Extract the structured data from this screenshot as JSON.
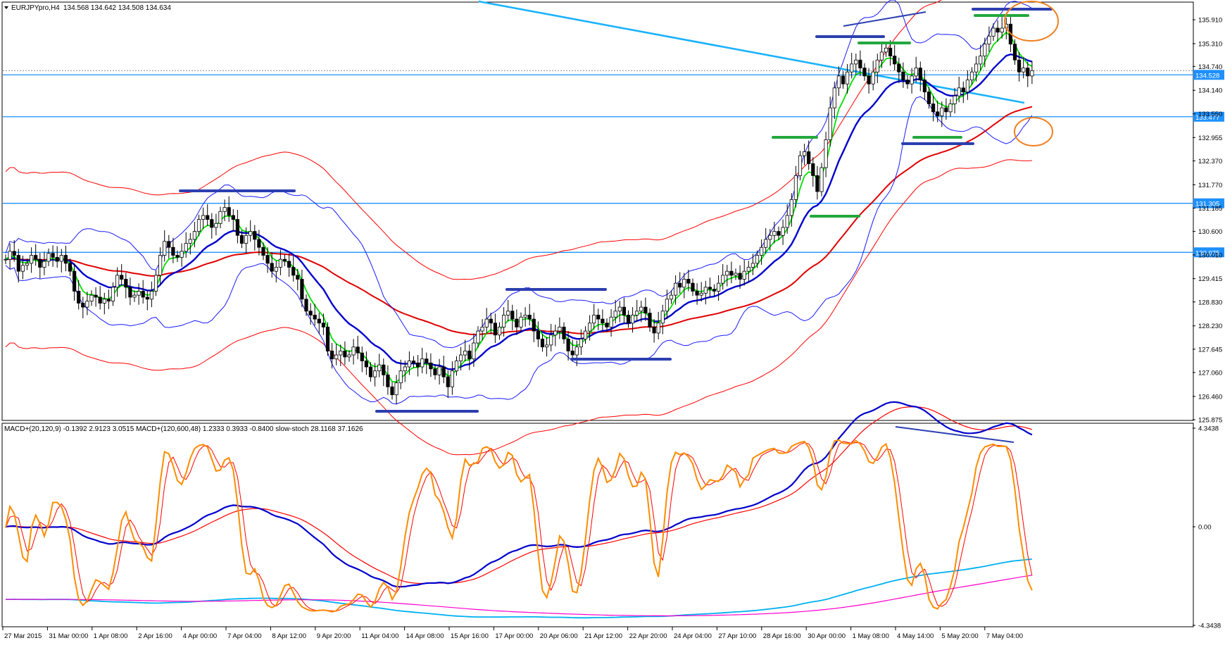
{
  "chart_data": [
    {
      "type": "candlestick",
      "symbol_label": "EURJPYpro,H4",
      "ohlc_label": "134.568 134.642 134.508 134.634",
      "y_ticks": [
        "135.910",
        "135.310",
        "134.740",
        "134.140",
        "133.550",
        "132.955",
        "132.370",
        "131.770",
        "131.185",
        "130.600",
        "130.010",
        "129.415",
        "128.830",
        "128.230",
        "127.645",
        "127.060",
        "126.460",
        "125.875"
      ],
      "y_range": [
        125.875,
        136.3
      ],
      "price_levels": [
        {
          "value": 134.528,
          "label": "134.528"
        },
        {
          "value": 133.477,
          "label": "133.477"
        },
        {
          "value": 131.305,
          "label": "131.305"
        },
        {
          "value": 130.075,
          "label": "130.075"
        }
      ],
      "current_price": 134.634,
      "series": [
        {
          "name": "close",
          "values": [
            129.9,
            130.1,
            130.0,
            129.6,
            129.75,
            129.8,
            130.0,
            129.9,
            129.7,
            129.85,
            130.05,
            129.95,
            129.85,
            130.0,
            129.8,
            129.6,
            129.1,
            128.8,
            128.7,
            128.85,
            129.0,
            128.95,
            128.8,
            128.9,
            128.85,
            129.2,
            129.5,
            129.4,
            129.2,
            128.95,
            129.0,
            129.1,
            128.95,
            128.9,
            129.1,
            129.5,
            130.0,
            130.35,
            130.2,
            130.0,
            129.95,
            130.1,
            130.3,
            130.4,
            130.6,
            130.9,
            131.0,
            130.9,
            130.7,
            130.8,
            131.1,
            131.2,
            131.0,
            130.9,
            130.5,
            130.3,
            130.5,
            130.6,
            130.4,
            130.2,
            130.0,
            129.8,
            129.6,
            129.7,
            129.9,
            129.85,
            129.7,
            129.5,
            129.4,
            128.9,
            128.6,
            128.5,
            128.4,
            128.3,
            128.2,
            127.6,
            127.4,
            127.5,
            127.6,
            127.45,
            127.5,
            127.7,
            127.55,
            127.35,
            127.2,
            126.95,
            127.1,
            127.25,
            127.0,
            126.7,
            126.5,
            126.8,
            127.1,
            127.2,
            127.35,
            127.3,
            127.2,
            127.4,
            127.3,
            127.15,
            127.0,
            127.2,
            126.95,
            126.7,
            127.1,
            127.35,
            127.5,
            127.6,
            127.4,
            127.8,
            128.1,
            128.2,
            128.4,
            128.3,
            128.0,
            128.2,
            128.5,
            128.6,
            128.4,
            128.2,
            128.45,
            128.5,
            128.4,
            128.1,
            127.9,
            127.7,
            127.75,
            128.0,
            128.1,
            128.2,
            127.9,
            127.6,
            127.5,
            127.7,
            127.9,
            128.1,
            128.3,
            128.5,
            128.4,
            128.3,
            128.2,
            128.45,
            128.6,
            128.7,
            128.5,
            128.3,
            128.5,
            128.6,
            128.7,
            128.55,
            128.2,
            128.05,
            128.3,
            128.6,
            128.9,
            129.0,
            129.3,
            129.2,
            129.4,
            129.3,
            129.1,
            129.0,
            129.05,
            129.2,
            129.15,
            129.1,
            129.3,
            129.5,
            129.6,
            129.5,
            129.55,
            129.4,
            129.6,
            129.7,
            129.8,
            130.0,
            130.2,
            130.4,
            130.5,
            130.6,
            130.5,
            130.7,
            131.0,
            131.4,
            132.0,
            132.5,
            132.6,
            132.3,
            132.0,
            131.6,
            132.2,
            132.9,
            133.7,
            134.2,
            134.5,
            134.3,
            134.6,
            134.8,
            134.9,
            134.7,
            134.5,
            134.3,
            134.6,
            134.9,
            135.1,
            135.2,
            135.0,
            134.8,
            134.6,
            134.4,
            134.3,
            134.5,
            134.7,
            134.4,
            134.1,
            133.8,
            133.6,
            133.5,
            133.7,
            133.6,
            133.8,
            134.0,
            134.2,
            134.1,
            134.4,
            134.6,
            134.8,
            135.0,
            135.3,
            135.5,
            135.7,
            135.6,
            135.7,
            135.8,
            135.3,
            134.9,
            134.6,
            134.7,
            134.5,
            134.634
          ]
        }
      ],
      "subplot": {
        "label": "MACD+(20,120,9) -0.1392 2.9123 3.0515   MACD+(120,600,48) 1.2333 0.3933 -0.8400   slow-stoch 28.1168 37.1626",
        "y_ticks": [
          "4.3438",
          "0.00",
          "-4.3438"
        ],
        "y_range": [
          -4.3438,
          4.3438
        ]
      },
      "x_tick_labels": [
        "27 Mar 2015",
        "31 Mar 00:00",
        "1 Apr 08:00",
        "2 Apr 16:00",
        "4 Apr 00:00",
        "7 Apr 04:00",
        "8 Apr 12:00",
        "9 Apr 20:00",
        "11 Apr 04:00",
        "14 Apr 08:00",
        "15 Apr 16:00",
        "17 Apr 00:00",
        "20 Apr 06:00",
        "21 Apr 12:00",
        "22 Apr 20:00",
        "24 Apr 04:00",
        "27 Apr 10:00",
        "28 Apr 16:00",
        "30 Apr 00:00",
        "1 May 08:00",
        "4 May 14:00",
        "5 May 20:00",
        "7 May 04:00"
      ],
      "colors": {
        "bull_body": "#ffffff",
        "bear_body": "#000000",
        "ema_fast": "#00e000",
        "ema_mid": "#0000cc",
        "ema_slow": "#e00000",
        "bollinger": "#1a1aff",
        "envelope": "#ff0000",
        "level": "#1e90ff",
        "trendline": "#1ab2ff",
        "stoch": "#ff8c00",
        "stoch_signal": "#ff0000",
        "macd_fast": "#0000cc",
        "macd_slow": "#00b0f0",
        "macd_slow_signal": "#ff00cc",
        "marker_blue": "#2c3fb0",
        "marker_green": "#22a83c",
        "circle": "#f08020"
      }
    }
  ]
}
